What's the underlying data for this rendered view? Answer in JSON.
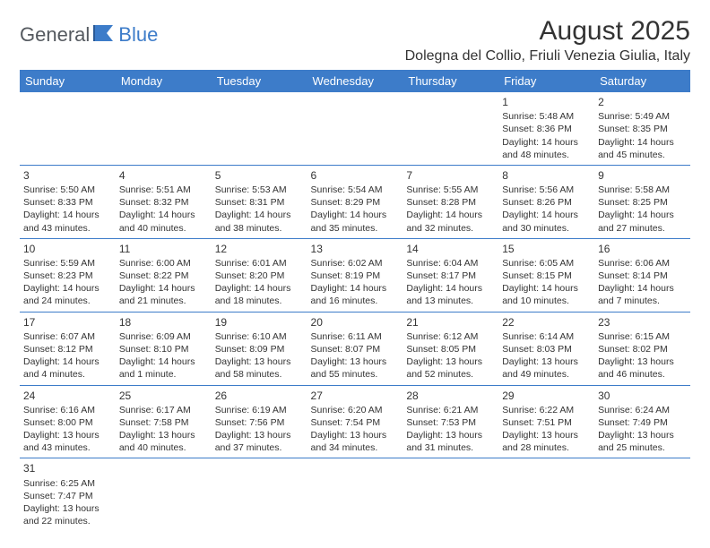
{
  "logo": {
    "text1": "General",
    "text2": "Blue"
  },
  "title": "August 2025",
  "location": "Dolegna del Collio, Friuli Venezia Giulia, Italy",
  "colors": {
    "header_bg": "#3d7cc9",
    "border": "#3d7cc9",
    "text": "#333333"
  },
  "daysOfWeek": [
    "Sunday",
    "Monday",
    "Tuesday",
    "Wednesday",
    "Thursday",
    "Friday",
    "Saturday"
  ],
  "weeks": [
    [
      null,
      null,
      null,
      null,
      null,
      {
        "n": "1",
        "sr": "5:48 AM",
        "ss": "8:36 PM",
        "dl": "14 hours and 48 minutes."
      },
      {
        "n": "2",
        "sr": "5:49 AM",
        "ss": "8:35 PM",
        "dl": "14 hours and 45 minutes."
      }
    ],
    [
      {
        "n": "3",
        "sr": "5:50 AM",
        "ss": "8:33 PM",
        "dl": "14 hours and 43 minutes."
      },
      {
        "n": "4",
        "sr": "5:51 AM",
        "ss": "8:32 PM",
        "dl": "14 hours and 40 minutes."
      },
      {
        "n": "5",
        "sr": "5:53 AM",
        "ss": "8:31 PM",
        "dl": "14 hours and 38 minutes."
      },
      {
        "n": "6",
        "sr": "5:54 AM",
        "ss": "8:29 PM",
        "dl": "14 hours and 35 minutes."
      },
      {
        "n": "7",
        "sr": "5:55 AM",
        "ss": "8:28 PM",
        "dl": "14 hours and 32 minutes."
      },
      {
        "n": "8",
        "sr": "5:56 AM",
        "ss": "8:26 PM",
        "dl": "14 hours and 30 minutes."
      },
      {
        "n": "9",
        "sr": "5:58 AM",
        "ss": "8:25 PM",
        "dl": "14 hours and 27 minutes."
      }
    ],
    [
      {
        "n": "10",
        "sr": "5:59 AM",
        "ss": "8:23 PM",
        "dl": "14 hours and 24 minutes."
      },
      {
        "n": "11",
        "sr": "6:00 AM",
        "ss": "8:22 PM",
        "dl": "14 hours and 21 minutes."
      },
      {
        "n": "12",
        "sr": "6:01 AM",
        "ss": "8:20 PM",
        "dl": "14 hours and 18 minutes."
      },
      {
        "n": "13",
        "sr": "6:02 AM",
        "ss": "8:19 PM",
        "dl": "14 hours and 16 minutes."
      },
      {
        "n": "14",
        "sr": "6:04 AM",
        "ss": "8:17 PM",
        "dl": "14 hours and 13 minutes."
      },
      {
        "n": "15",
        "sr": "6:05 AM",
        "ss": "8:15 PM",
        "dl": "14 hours and 10 minutes."
      },
      {
        "n": "16",
        "sr": "6:06 AM",
        "ss": "8:14 PM",
        "dl": "14 hours and 7 minutes."
      }
    ],
    [
      {
        "n": "17",
        "sr": "6:07 AM",
        "ss": "8:12 PM",
        "dl": "14 hours and 4 minutes."
      },
      {
        "n": "18",
        "sr": "6:09 AM",
        "ss": "8:10 PM",
        "dl": "14 hours and 1 minute."
      },
      {
        "n": "19",
        "sr": "6:10 AM",
        "ss": "8:09 PM",
        "dl": "13 hours and 58 minutes."
      },
      {
        "n": "20",
        "sr": "6:11 AM",
        "ss": "8:07 PM",
        "dl": "13 hours and 55 minutes."
      },
      {
        "n": "21",
        "sr": "6:12 AM",
        "ss": "8:05 PM",
        "dl": "13 hours and 52 minutes."
      },
      {
        "n": "22",
        "sr": "6:14 AM",
        "ss": "8:03 PM",
        "dl": "13 hours and 49 minutes."
      },
      {
        "n": "23",
        "sr": "6:15 AM",
        "ss": "8:02 PM",
        "dl": "13 hours and 46 minutes."
      }
    ],
    [
      {
        "n": "24",
        "sr": "6:16 AM",
        "ss": "8:00 PM",
        "dl": "13 hours and 43 minutes."
      },
      {
        "n": "25",
        "sr": "6:17 AM",
        "ss": "7:58 PM",
        "dl": "13 hours and 40 minutes."
      },
      {
        "n": "26",
        "sr": "6:19 AM",
        "ss": "7:56 PM",
        "dl": "13 hours and 37 minutes."
      },
      {
        "n": "27",
        "sr": "6:20 AM",
        "ss": "7:54 PM",
        "dl": "13 hours and 34 minutes."
      },
      {
        "n": "28",
        "sr": "6:21 AM",
        "ss": "7:53 PM",
        "dl": "13 hours and 31 minutes."
      },
      {
        "n": "29",
        "sr": "6:22 AM",
        "ss": "7:51 PM",
        "dl": "13 hours and 28 minutes."
      },
      {
        "n": "30",
        "sr": "6:24 AM",
        "ss": "7:49 PM",
        "dl": "13 hours and 25 minutes."
      }
    ],
    [
      {
        "n": "31",
        "sr": "6:25 AM",
        "ss": "7:47 PM",
        "dl": "13 hours and 22 minutes."
      },
      null,
      null,
      null,
      null,
      null,
      null
    ]
  ],
  "labels": {
    "sunrise": "Sunrise: ",
    "sunset": "Sunset: ",
    "daylight": "Daylight: "
  }
}
